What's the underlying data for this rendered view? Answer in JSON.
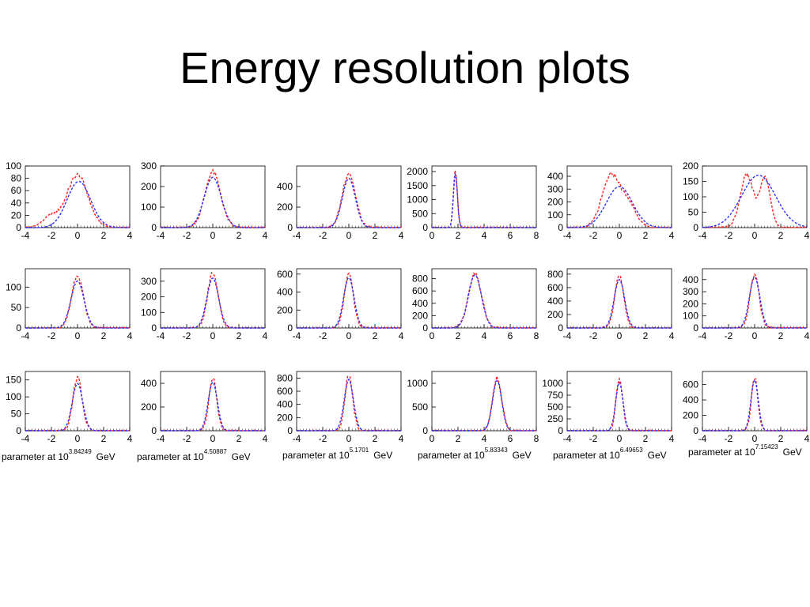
{
  "title": "Energy resolution plots",
  "colors": {
    "red_series": "#ff2020",
    "blue_series": "#2d2dff",
    "frame": "#000000"
  },
  "captions": [
    {
      "text": "parameter at 10",
      "exponent": "3.84249",
      "unit": "GeV"
    },
    {
      "text": "parameter at 10",
      "exponent": "4.50887",
      "unit": "GeV"
    },
    {
      "text": "parameter at 10",
      "exponent": "5.1701",
      "unit": "GeV"
    },
    {
      "text": "parameter at 10",
      "exponent": "5.83343",
      "unit": "GeV"
    },
    {
      "text": "parameter at 10",
      "exponent": "6.49653",
      "unit": "GeV"
    },
    {
      "text": "parameter at 10",
      "exponent": "7.15423",
      "unit": "GeV"
    }
  ],
  "chart_data": [
    {
      "type": "line",
      "series": [
        {
          "color": "red",
          "style": "dashed",
          "mean": 0,
          "sigma": 0.8,
          "peak": 85,
          "bump": {
            "x": -2,
            "height": 18
          }
        },
        {
          "color": "blue",
          "style": "dashed",
          "mean": 0.1,
          "sigma": 0.9,
          "peak": 75
        }
      ],
      "xlim": [
        -4,
        4
      ],
      "ylim": [
        0,
        100
      ],
      "xticks": [
        "-4",
        "-2",
        "0",
        "2",
        "4"
      ],
      "yticks": [
        "0",
        "20",
        "40",
        "60",
        "80",
        "100"
      ]
    },
    {
      "type": "line",
      "series": [
        {
          "color": "red",
          "style": "dashed",
          "mean": 0,
          "sigma": 0.6,
          "peak": 270
        },
        {
          "color": "blue",
          "style": "dashed",
          "mean": 0,
          "sigma": 0.65,
          "peak": 245
        }
      ],
      "xlim": [
        -4,
        4
      ],
      "ylim": [
        0,
        300
      ],
      "xticks": [
        "-4",
        "-2",
        "0",
        "2",
        "4"
      ],
      "yticks": [
        "0",
        "100",
        "200",
        "300"
      ]
    },
    {
      "type": "line",
      "series": [
        {
          "color": "red",
          "style": "dashed",
          "mean": 0,
          "sigma": 0.5,
          "peak": 530
        },
        {
          "color": "blue",
          "style": "dashed",
          "mean": 0,
          "sigma": 0.5,
          "peak": 480
        }
      ],
      "xlim": [
        -4,
        4
      ],
      "ylim": [
        0,
        600
      ],
      "xticks": [
        "-4",
        "-2",
        "0",
        "2",
        "4"
      ],
      "yticks": [
        "0",
        "200",
        "400"
      ]
    },
    {
      "type": "line",
      "series": [
        {
          "color": "red",
          "style": "dashed",
          "mean": 1.8,
          "sigma": 0.15,
          "peak": 2000
        },
        {
          "color": "blue",
          "style": "dashed",
          "mean": 1.8,
          "sigma": 0.15,
          "peak": 1950
        }
      ],
      "xlim": [
        0,
        8
      ],
      "ylim": [
        0,
        2200
      ],
      "xticks": [
        "0",
        "2",
        "4",
        "6",
        "8"
      ],
      "yticks": [
        "0",
        "500",
        "1000",
        "1500",
        "2000"
      ]
    },
    {
      "type": "line",
      "series": [
        {
          "color": "red",
          "style": "dashed",
          "mean": -0.6,
          "sigma": 0.7,
          "peak": 410,
          "bump": {
            "x": 0.8,
            "height": 150
          }
        },
        {
          "color": "blue",
          "style": "dashed",
          "mean": 0,
          "sigma": 1.0,
          "peak": 320
        }
      ],
      "xlim": [
        -4,
        4
      ],
      "ylim": [
        0,
        480
      ],
      "xticks": [
        "-4",
        "-2",
        "0",
        "2",
        "4"
      ],
      "yticks": [
        "0",
        "100",
        "200",
        "300",
        "400"
      ]
    },
    {
      "type": "line",
      "series": [
        {
          "color": "red",
          "style": "dashed",
          "mean": -0.6,
          "sigma": 0.5,
          "peak": 170,
          "bump": {
            "x": 0.8,
            "height": 160
          }
        },
        {
          "color": "blue",
          "style": "dashed",
          "mean": 0.3,
          "sigma": 1.3,
          "peak": 170
        }
      ],
      "xlim": [
        -4,
        4
      ],
      "ylim": [
        0,
        200
      ],
      "xticks": [
        "-4",
        "-2",
        "0",
        "2",
        "4"
      ],
      "yticks": [
        "0",
        "50",
        "100",
        "150",
        "200"
      ]
    },
    {
      "type": "line",
      "series": [
        {
          "color": "red",
          "style": "dashed",
          "mean": 0,
          "sigma": 0.45,
          "peak": 130
        },
        {
          "color": "blue",
          "style": "dashed",
          "mean": 0,
          "sigma": 0.5,
          "peak": 115
        }
      ],
      "xlim": [
        -4,
        4
      ],
      "ylim": [
        0,
        145
      ],
      "xticks": [
        "-4",
        "-2",
        "0",
        "2",
        "4"
      ],
      "yticks": [
        "0",
        "50",
        "100"
      ]
    },
    {
      "type": "line",
      "series": [
        {
          "color": "red",
          "style": "dashed",
          "mean": 0,
          "sigma": 0.4,
          "peak": 350
        },
        {
          "color": "blue",
          "style": "dashed",
          "mean": 0,
          "sigma": 0.45,
          "peak": 320
        }
      ],
      "xlim": [
        -4,
        4
      ],
      "ylim": [
        0,
        380
      ],
      "xticks": [
        "-4",
        "-2",
        "0",
        "2",
        "4"
      ],
      "yticks": [
        "0",
        "100",
        "200",
        "300"
      ]
    },
    {
      "type": "line",
      "series": [
        {
          "color": "red",
          "style": "dashed",
          "mean": 0,
          "sigma": 0.35,
          "peak": 590
        },
        {
          "color": "blue",
          "style": "dashed",
          "mean": 0,
          "sigma": 0.4,
          "peak": 560
        }
      ],
      "xlim": [
        -4,
        4
      ],
      "ylim": [
        0,
        660
      ],
      "xticks": [
        "-4",
        "-2",
        "0",
        "2",
        "4"
      ],
      "yticks": [
        "0",
        "200",
        "400",
        "600"
      ]
    },
    {
      "type": "line",
      "series": [
        {
          "color": "red",
          "style": "dashed",
          "mean": 3.3,
          "sigma": 0.5,
          "peak": 870
        },
        {
          "color": "blue",
          "style": "dashed",
          "mean": 3.3,
          "sigma": 0.5,
          "peak": 860
        }
      ],
      "xlim": [
        0,
        8
      ],
      "ylim": [
        0,
        960
      ],
      "xticks": [
        "0",
        "2",
        "4",
        "6",
        "8"
      ],
      "yticks": [
        "0",
        "200",
        "400",
        "600",
        "800"
      ]
    },
    {
      "type": "line",
      "series": [
        {
          "color": "red",
          "style": "dashed",
          "mean": 0,
          "sigma": 0.35,
          "peak": 760
        },
        {
          "color": "blue",
          "style": "dashed",
          "mean": 0,
          "sigma": 0.4,
          "peak": 720
        }
      ],
      "xlim": [
        -4,
        4
      ],
      "ylim": [
        0,
        880
      ],
      "xticks": [
        "-4",
        "-2",
        "0",
        "2",
        "4"
      ],
      "yticks": [
        "0",
        "200",
        "400",
        "600",
        "800"
      ]
    },
    {
      "type": "line",
      "series": [
        {
          "color": "red",
          "style": "dashed",
          "mean": 0,
          "sigma": 0.35,
          "peak": 440
        },
        {
          "color": "blue",
          "style": "dashed",
          "mean": 0,
          "sigma": 0.4,
          "peak": 420
        }
      ],
      "xlim": [
        -4,
        4
      ],
      "ylim": [
        0,
        490
      ],
      "xticks": [
        "-4",
        "-2",
        "0",
        "2",
        "4"
      ],
      "yticks": [
        "0",
        "100",
        "200",
        "300",
        "400"
      ]
    },
    {
      "type": "line",
      "series": [
        {
          "color": "red",
          "style": "dashed",
          "mean": 0,
          "sigma": 0.35,
          "peak": 158
        },
        {
          "color": "blue",
          "style": "dashed",
          "mean": 0,
          "sigma": 0.4,
          "peak": 140
        }
      ],
      "xlim": [
        -4,
        4
      ],
      "ylim": [
        0,
        175
      ],
      "xticks": [
        "-4",
        "-2",
        "0",
        "2",
        "4"
      ],
      "yticks": [
        "0",
        "50",
        "100",
        "150"
      ]
    },
    {
      "type": "line",
      "series": [
        {
          "color": "red",
          "style": "dashed",
          "mean": 0,
          "sigma": 0.3,
          "peak": 450
        },
        {
          "color": "blue",
          "style": "dashed",
          "mean": 0,
          "sigma": 0.35,
          "peak": 410
        }
      ],
      "xlim": [
        -4,
        4
      ],
      "ylim": [
        0,
        500
      ],
      "xticks": [
        "-4",
        "-2",
        "0",
        "2",
        "4"
      ],
      "yticks": [
        "0",
        "200",
        "400"
      ]
    },
    {
      "type": "line",
      "series": [
        {
          "color": "red",
          "style": "dashed",
          "mean": 0,
          "sigma": 0.3,
          "peak": 830
        },
        {
          "color": "blue",
          "style": "dashed",
          "mean": 0,
          "sigma": 0.35,
          "peak": 780
        }
      ],
      "xlim": [
        -4,
        4
      ],
      "ylim": [
        0,
        900
      ],
      "xticks": [
        "-4",
        "-2",
        "0",
        "2",
        "4"
      ],
      "yticks": [
        "0",
        "200",
        "400",
        "600",
        "800"
      ]
    },
    {
      "type": "line",
      "series": [
        {
          "color": "red",
          "style": "dashed",
          "mean": 5.0,
          "sigma": 0.35,
          "peak": 1120
        },
        {
          "color": "blue",
          "style": "dashed",
          "mean": 5.0,
          "sigma": 0.35,
          "peak": 1060
        }
      ],
      "xlim": [
        0,
        8
      ],
      "ylim": [
        0,
        1250
      ],
      "xticks": [
        "0",
        "2",
        "4",
        "6",
        "8"
      ],
      "yticks": [
        "0",
        "500",
        "1000"
      ]
    },
    {
      "type": "line",
      "series": [
        {
          "color": "red",
          "style": "dashed",
          "mean": 0,
          "sigma": 0.25,
          "peak": 1100
        },
        {
          "color": "blue",
          "style": "dashed",
          "mean": 0,
          "sigma": 0.28,
          "peak": 1020
        }
      ],
      "xlim": [
        -4,
        4
      ],
      "ylim": [
        0,
        1250
      ],
      "xticks": [
        "-4",
        "-2",
        "0",
        "2",
        "4"
      ],
      "yticks": [
        "0",
        "250",
        "500",
        "750",
        "1000"
      ]
    },
    {
      "type": "line",
      "series": [
        {
          "color": "red",
          "style": "dashed",
          "mean": 0,
          "sigma": 0.25,
          "peak": 690
        },
        {
          "color": "blue",
          "style": "dashed",
          "mean": 0,
          "sigma": 0.28,
          "peak": 660
        }
      ],
      "xlim": [
        -4,
        4
      ],
      "ylim": [
        0,
        770
      ],
      "xticks": [
        "-4",
        "-2",
        "0",
        "2",
        "4"
      ],
      "yticks": [
        "0",
        "200",
        "400",
        "600"
      ]
    }
  ]
}
